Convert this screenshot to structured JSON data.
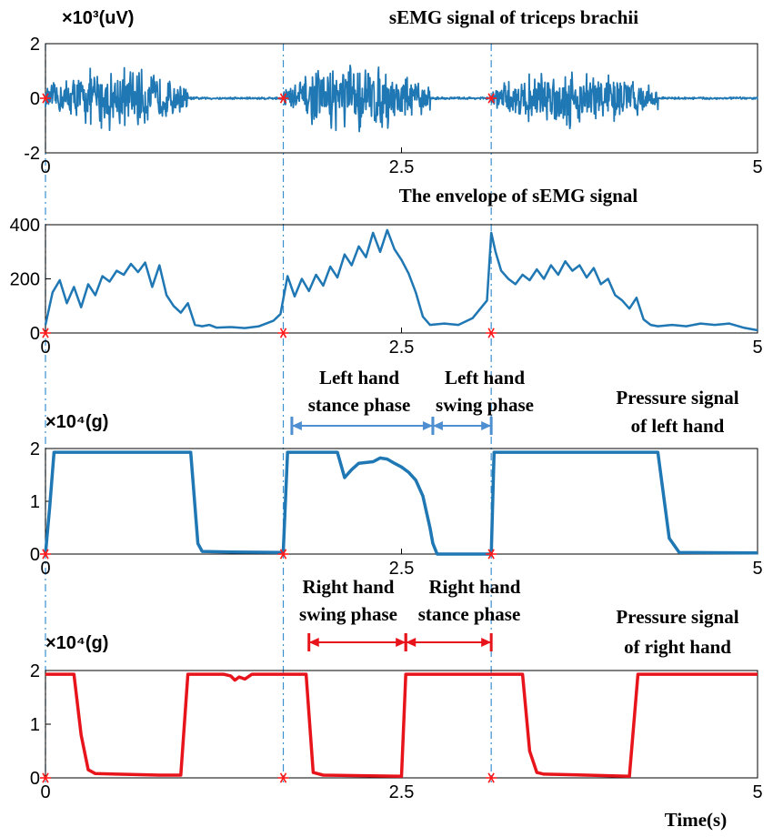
{
  "chart_data": [
    {
      "type": "line",
      "title": "sEMG signal of triceps brachii",
      "unit_label": "×10³(uV)",
      "xlim": [
        0,
        5
      ],
      "ylim": [
        -2,
        2
      ],
      "x_ticks": [
        0,
        2.5,
        5
      ],
      "x_tick_labels": [
        "0",
        "2.5",
        "5"
      ],
      "y_ticks": [
        -2,
        0,
        2
      ],
      "y_tick_labels": [
        "-2",
        "0",
        "2"
      ],
      "color": "#1f77b4",
      "markers_x": [
        0,
        1.67,
        3.13
      ],
      "bursts": [
        {
          "x_start": 0.0,
          "x_end": 1.0,
          "peak_amplitude": 1.3
        },
        {
          "x_start": 1.67,
          "x_end": 2.7,
          "peak_amplitude": 1.4
        },
        {
          "x_start": 3.13,
          "x_end": 4.3,
          "peak_amplitude": 1.2
        }
      ]
    },
    {
      "type": "line",
      "title": "The envelope of sEMG signal",
      "xlim": [
        0,
        5
      ],
      "ylim": [
        0,
        400
      ],
      "x_ticks": [
        0,
        2.5,
        5
      ],
      "x_tick_labels": [
        "0",
        "2.5",
        "5"
      ],
      "y_ticks": [
        0,
        200,
        400
      ],
      "y_tick_labels": [
        "0",
        "200",
        "400"
      ],
      "color": "#1f77b4",
      "markers_x": [
        0,
        1.67,
        3.13
      ],
      "x": [
        0.0,
        0.05,
        0.1,
        0.15,
        0.2,
        0.25,
        0.3,
        0.35,
        0.4,
        0.45,
        0.5,
        0.55,
        0.6,
        0.65,
        0.7,
        0.75,
        0.8,
        0.85,
        0.9,
        0.95,
        1.0,
        1.05,
        1.1,
        1.15,
        1.2,
        1.3,
        1.4,
        1.5,
        1.6,
        1.65,
        1.7,
        1.75,
        1.8,
        1.85,
        1.9,
        1.95,
        2.0,
        2.05,
        2.1,
        2.15,
        2.2,
        2.25,
        2.3,
        2.35,
        2.4,
        2.45,
        2.5,
        2.55,
        2.6,
        2.65,
        2.7,
        2.8,
        2.9,
        3.0,
        3.1,
        3.13,
        3.16,
        3.2,
        3.25,
        3.3,
        3.35,
        3.4,
        3.45,
        3.5,
        3.55,
        3.6,
        3.65,
        3.7,
        3.75,
        3.8,
        3.85,
        3.9,
        3.95,
        4.0,
        4.05,
        4.1,
        4.15,
        4.2,
        4.25,
        4.3,
        4.4,
        4.5,
        4.6,
        4.7,
        4.8,
        4.9,
        5.0
      ],
      "y": [
        30,
        150,
        195,
        110,
        170,
        95,
        180,
        140,
        210,
        190,
        230,
        215,
        255,
        225,
        260,
        170,
        250,
        140,
        100,
        75,
        110,
        30,
        25,
        30,
        20,
        22,
        18,
        25,
        45,
        70,
        210,
        135,
        200,
        155,
        215,
        175,
        245,
        205,
        290,
        250,
        320,
        280,
        370,
        300,
        380,
        310,
        270,
        220,
        150,
        60,
        30,
        35,
        30,
        55,
        120,
        370,
        300,
        230,
        200,
        180,
        215,
        195,
        235,
        200,
        250,
        215,
        265,
        230,
        250,
        205,
        240,
        180,
        200,
        140,
        120,
        90,
        130,
        50,
        30,
        25,
        30,
        25,
        35,
        30,
        35,
        20,
        10
      ]
    },
    {
      "type": "line",
      "title": "Pressure signal of left hand",
      "title_lines": [
        "Pressure signal",
        "of left hand"
      ],
      "unit_label": "×10⁴(g)",
      "xlim": [
        0,
        5
      ],
      "ylim": [
        0,
        2
      ],
      "x_ticks": [
        0,
        2.5,
        5
      ],
      "x_tick_labels": [
        "0",
        "2.5",
        "5"
      ],
      "y_ticks": [
        0,
        1,
        2
      ],
      "y_tick_labels": [
        "0",
        "1",
        "2"
      ],
      "color": "#1f77b4",
      "markers_x": [
        0,
        1.67,
        3.13
      ],
      "x": [
        0.0,
        0.03,
        0.06,
        1.02,
        1.07,
        1.1,
        1.3,
        1.66,
        1.67,
        1.7,
        2.05,
        2.1,
        2.15,
        2.2,
        2.3,
        2.35,
        2.4,
        2.45,
        2.5,
        2.55,
        2.6,
        2.65,
        2.7,
        2.72,
        2.75,
        3.12,
        3.13,
        3.15,
        4.3,
        4.38,
        4.45,
        5.0
      ],
      "y": [
        0,
        0.9,
        1.93,
        1.93,
        0.2,
        0.05,
        0.04,
        0.03,
        0.05,
        1.93,
        1.93,
        1.45,
        1.6,
        1.72,
        1.75,
        1.82,
        1.8,
        1.72,
        1.65,
        1.55,
        1.4,
        1.1,
        0.5,
        0.2,
        0.0,
        0.0,
        0.0,
        1.93,
        1.93,
        0.3,
        0.03,
        0.02
      ],
      "phases": [
        {
          "label_lines": [
            "Left hand",
            "stance phase"
          ],
          "x_start": 1.73,
          "x_end": 2.72
        },
        {
          "label_lines": [
            "Left hand",
            "swing phase"
          ],
          "x_start": 2.72,
          "x_end": 3.13
        }
      ]
    },
    {
      "type": "line",
      "title": "Pressure signal of right hand",
      "title_lines": [
        "Pressure signal",
        "of right hand"
      ],
      "unit_label": "×10⁴(g)",
      "xlabel": "Time(s)",
      "xlim": [
        0,
        5
      ],
      "ylim": [
        0,
        2
      ],
      "x_ticks": [
        0,
        2.5,
        5
      ],
      "x_tick_labels": [
        "0",
        "2.5",
        "5"
      ],
      "y_ticks": [
        0,
        1,
        2
      ],
      "y_tick_labels": [
        "0",
        "1",
        "2"
      ],
      "color": "#e8141b",
      "markers_x": [
        0,
        1.67,
        3.13
      ],
      "x": [
        0.0,
        0.2,
        0.25,
        0.3,
        0.35,
        0.5,
        0.8,
        0.95,
        1.0,
        1.05,
        1.25,
        1.3,
        1.33,
        1.36,
        1.4,
        1.45,
        1.67,
        1.83,
        1.88,
        1.95,
        2.5,
        2.53,
        2.56,
        3.35,
        3.4,
        3.45,
        3.5,
        3.8,
        4.1,
        4.16,
        4.2,
        5.0
      ],
      "y": [
        1.93,
        1.93,
        0.8,
        0.15,
        0.08,
        0.07,
        0.05,
        0.05,
        1.93,
        1.93,
        1.93,
        1.9,
        1.82,
        1.88,
        1.84,
        1.93,
        1.93,
        1.93,
        0.1,
        0.05,
        0.03,
        1.93,
        1.93,
        1.93,
        0.5,
        0.1,
        0.07,
        0.05,
        0.03,
        1.93,
        1.93,
        1.93
      ],
      "phases": [
        {
          "label_lines": [
            "Right hand",
            "swing phase"
          ],
          "x_start": 1.85,
          "x_end": 2.53
        },
        {
          "label_lines": [
            "Right hand",
            "stance phase"
          ],
          "x_start": 2.53,
          "x_end": 3.13
        }
      ]
    }
  ],
  "colors": {
    "blue": "#1f77b4",
    "red": "#e8141b",
    "marker": "#ff1a1a",
    "axis": "#000000",
    "phase_arrow_blue": "#4d8fd1",
    "phase_arrow_red": "#e8141b",
    "gridline": "#3a8fcf"
  }
}
